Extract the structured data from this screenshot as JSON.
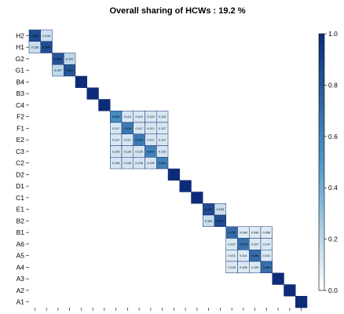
{
  "chart_data": {
    "type": "heatmap",
    "title": "Overall sharing of HCWs :  19.2 %",
    "labels": [
      "H2",
      "H1",
      "G2",
      "G1",
      "B4",
      "B3",
      "C4",
      "F2",
      "F1",
      "E2",
      "C3",
      "C2",
      "D2",
      "D1",
      "C1",
      "E1",
      "B2",
      "B1",
      "A6",
      "A5",
      "A4",
      "A3",
      "A2",
      "A1"
    ],
    "colorbar": {
      "min": 0.0,
      "max": 1.0,
      "ticks": [
        "0.0",
        "0.2",
        "0.4",
        "0.6",
        "0.8",
        "1.0"
      ]
    },
    "colors": {
      "low": "#ffffff",
      "mid": "#4f97c8",
      "high": "#0c2c79"
    },
    "blocks": [
      {
        "start": 0,
        "values": [
          [
            "0.851",
            "0.149"
          ],
          [
            "0.158",
            "0.844"
          ]
        ]
      },
      {
        "start": 2,
        "values": [
          [
            "0.809",
            "0.191"
          ],
          [
            "0.187",
            "0.809"
          ]
        ]
      },
      {
        "start": 4,
        "values": [
          [
            "1"
          ]
        ]
      },
      {
        "start": 5,
        "values": [
          [
            "1"
          ]
        ]
      },
      {
        "start": 6,
        "values": [
          [
            "1"
          ]
        ]
      },
      {
        "start": 7,
        "values": [
          [
            "0.549",
            "0.113",
            "0.113",
            "0.113",
            "0.113"
          ],
          [
            "0.117",
            "0.634",
            "0.117",
            "0.117",
            "0.117"
          ],
          [
            "0.117",
            "0.117",
            "0.634",
            "0.117",
            "0.117"
          ],
          [
            "0.125",
            "0.125",
            "0.125",
            "0.602",
            "0.125"
          ],
          [
            "0.126",
            "0.126",
            "0.126",
            "0.126",
            "0.602"
          ]
        ]
      },
      {
        "start": 12,
        "values": [
          [
            "1"
          ]
        ]
      },
      {
        "start": 13,
        "values": [
          [
            "1"
          ]
        ]
      },
      {
        "start": 14,
        "values": [
          [
            "1"
          ]
        ]
      },
      {
        "start": 15,
        "values": [
          [
            "0.847",
            "0.153"
          ],
          [
            "0.153",
            "0.847"
          ]
        ]
      },
      {
        "start": 17,
        "values": [
          [
            "0.705",
            "0.098",
            "0.098",
            "0.098"
          ],
          [
            "0.107",
            "0.678",
            "0.107",
            "0.107"
          ],
          [
            "0.101",
            "0.101",
            "0.698",
            "0.101"
          ],
          [
            "0.105",
            "0.105",
            "0.105",
            "0.684"
          ]
        ]
      },
      {
        "start": 21,
        "values": [
          [
            "1"
          ]
        ]
      },
      {
        "start": 22,
        "values": [
          [
            "1"
          ]
        ]
      },
      {
        "start": 23,
        "values": [
          [
            "1"
          ]
        ]
      }
    ]
  }
}
